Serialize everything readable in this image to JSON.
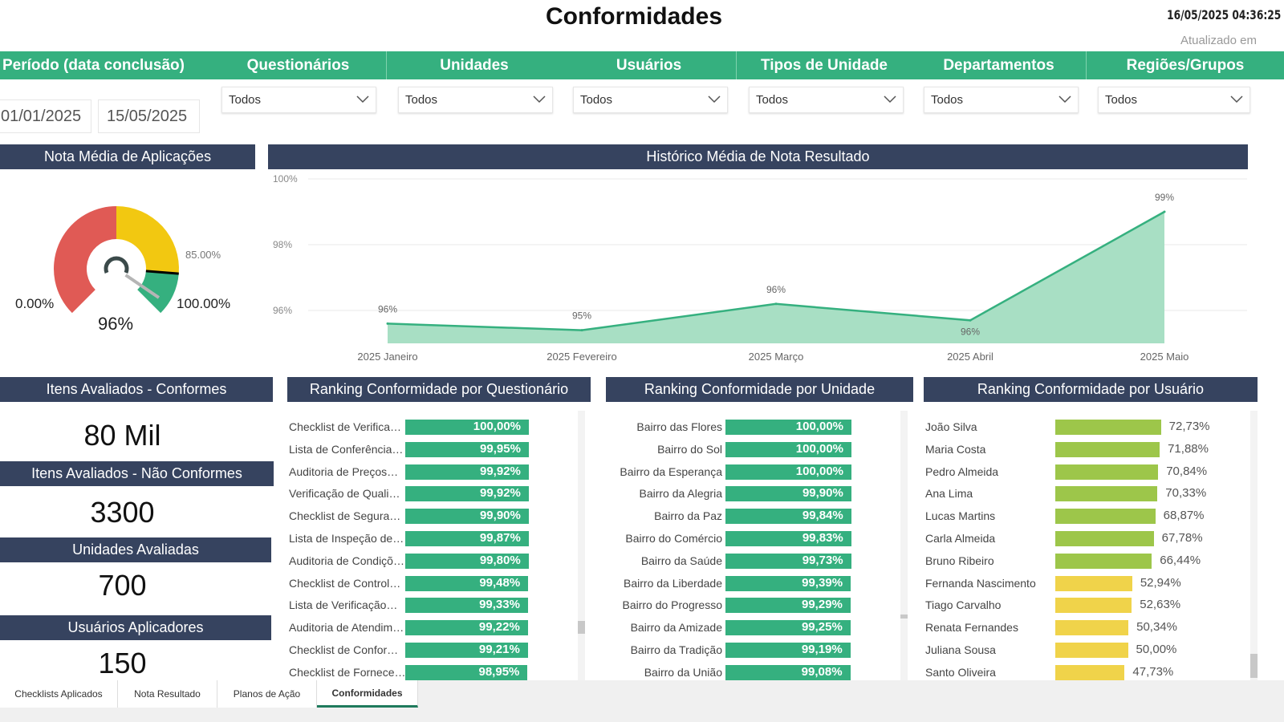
{
  "header": {
    "title": "Conformidades",
    "timestamp": "16/05/2025 04:36:25",
    "updated_label": "Atualizado em"
  },
  "filters": {
    "labels": [
      "Período (data conclusão)",
      "Questionários",
      "Unidades",
      "Usuários",
      "Tipos de Unidade",
      "Departamentos",
      "Regiões/Grupos"
    ],
    "date_start": "01/01/2025",
    "date_end": "15/05/2025",
    "dropdowns": [
      "Todos",
      "Todos",
      "Todos",
      "Todos",
      "Todos",
      "Todos"
    ]
  },
  "gauge": {
    "title": "Nota Média de Aplicações",
    "value": 96,
    "value_label": "96%",
    "min_label": "0.00%",
    "max_label": "100.00%",
    "target_label": "85.00%",
    "target": 85,
    "colors": {
      "red": "#e05a55",
      "yellow": "#f2c811",
      "green": "#35b07f"
    }
  },
  "kpis": [
    {
      "title": "Itens Avaliados - Conformes",
      "value": "80 Mil"
    },
    {
      "title": "Itens Avaliados - Não Conformes",
      "value": "3300"
    },
    {
      "title": "Unidades Avaliadas",
      "value": "700"
    },
    {
      "title": "Usuários Aplicadores",
      "value": "150"
    }
  ],
  "chart_data": {
    "type": "area",
    "title": "Histórico Média de Nota Resultado",
    "categories": [
      "2025 Janeiro",
      "2025 Fevereiro",
      "2025 Março",
      "2025 Abril",
      "2025 Maio"
    ],
    "values": [
      95.6,
      95.4,
      96.2,
      95.7,
      99.0
    ],
    "data_labels": [
      "96%",
      "95%",
      "96%",
      "96%",
      "99%"
    ],
    "yticks": [
      "96%",
      "98%",
      "100%"
    ],
    "ylim": [
      95,
      100
    ],
    "color": "#35b07f",
    "grid": true
  },
  "rank_questionario": {
    "title": "Ranking Conformidade por Questionário",
    "color": "#35b07f",
    "items": [
      {
        "name": "Checklist de Verifica…",
        "value": 100.0,
        "label": "100,00%"
      },
      {
        "name": "Lista de Conferência…",
        "value": 99.95,
        "label": "99,95%"
      },
      {
        "name": "Auditoria de Preços…",
        "value": 99.92,
        "label": "99,92%"
      },
      {
        "name": "Verificação de Quali…",
        "value": 99.92,
        "label": "99,92%"
      },
      {
        "name": "Checklist de Segura…",
        "value": 99.9,
        "label": "99,90%"
      },
      {
        "name": "Lista de Inspeção de…",
        "value": 99.87,
        "label": "99,87%"
      },
      {
        "name": "Auditoria de Condiçõ…",
        "value": 99.8,
        "label": "99,80%"
      },
      {
        "name": "Checklist de Control…",
        "value": 99.48,
        "label": "99,48%"
      },
      {
        "name": "Lista de Verificação…",
        "value": 99.33,
        "label": "99,33%"
      },
      {
        "name": "Auditoria de Atendim…",
        "value": 99.22,
        "label": "99,22%"
      },
      {
        "name": "Checklist de Confor…",
        "value": 99.21,
        "label": "99,21%"
      },
      {
        "name": "Checklist de Fornece…",
        "value": 98.95,
        "label": "98,95%"
      }
    ]
  },
  "rank_unidade": {
    "title": "Ranking Conformidade por Unidade",
    "color": "#35b07f",
    "items": [
      {
        "name": "Bairro das Flores",
        "value": 100.0,
        "label": "100,00%"
      },
      {
        "name": "Bairro do Sol",
        "value": 100.0,
        "label": "100,00%"
      },
      {
        "name": "Bairro da Esperança",
        "value": 100.0,
        "label": "100,00%"
      },
      {
        "name": "Bairro da Alegria",
        "value": 99.9,
        "label": "99,90%"
      },
      {
        "name": "Bairro da Paz",
        "value": 99.84,
        "label": "99,84%"
      },
      {
        "name": "Bairro do Comércio",
        "value": 99.83,
        "label": "99,83%"
      },
      {
        "name": "Bairro da Saúde",
        "value": 99.73,
        "label": "99,73%"
      },
      {
        "name": "Bairro da Liberdade",
        "value": 99.39,
        "label": "99,39%"
      },
      {
        "name": "Bairro do Progresso",
        "value": 99.29,
        "label": "99,29%"
      },
      {
        "name": "Bairro da Amizade",
        "value": 99.25,
        "label": "99,25%"
      },
      {
        "name": "Bairro da Tradição",
        "value": 99.19,
        "label": "99,19%"
      },
      {
        "name": "Bairro da União",
        "value": 99.08,
        "label": "99,08%"
      }
    ]
  },
  "rank_usuario": {
    "title": "Ranking Conformidade por Usuário",
    "items": [
      {
        "name": "João Silva",
        "value": 72.73,
        "label": "72,73%",
        "color": "#9dc64a"
      },
      {
        "name": "Maria Costa",
        "value": 71.88,
        "label": "71,88%",
        "color": "#9dc64a"
      },
      {
        "name": "Pedro Almeida",
        "value": 70.84,
        "label": "70,84%",
        "color": "#9dc64a"
      },
      {
        "name": "Ana Lima",
        "value": 70.33,
        "label": "70,33%",
        "color": "#9dc64a"
      },
      {
        "name": "Lucas Martins",
        "value": 68.87,
        "label": "68,87%",
        "color": "#9dc64a"
      },
      {
        "name": "Carla Almeida",
        "value": 67.78,
        "label": "67,78%",
        "color": "#9dc64a"
      },
      {
        "name": "Bruno Ribeiro",
        "value": 66.44,
        "label": "66,44%",
        "color": "#9dc64a"
      },
      {
        "name": "Fernanda Nascimento",
        "value": 52.94,
        "label": "52,94%",
        "color": "#f0d34a"
      },
      {
        "name": "Tiago Carvalho",
        "value": 52.63,
        "label": "52,63%",
        "color": "#f0d34a"
      },
      {
        "name": "Renata Fernandes",
        "value": 50.34,
        "label": "50,34%",
        "color": "#f0d34a"
      },
      {
        "name": "Juliana Sousa",
        "value": 50.0,
        "label": "50,00%",
        "color": "#f0d34a"
      },
      {
        "name": "Santo Oliveira",
        "value": 47.73,
        "label": "47,73%",
        "color": "#f0d34a"
      }
    ]
  },
  "tabs": [
    {
      "label": "Checklists Aplicados"
    },
    {
      "label": "Nota Resultado"
    },
    {
      "label": "Planos de Ação"
    },
    {
      "label": "Conformidades",
      "active": true
    }
  ]
}
